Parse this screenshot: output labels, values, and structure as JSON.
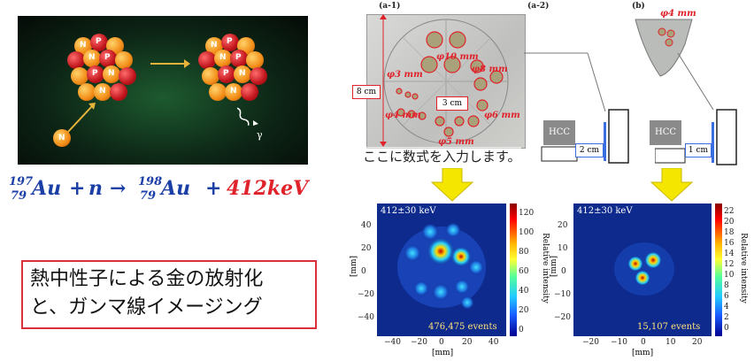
{
  "illustration": {
    "neutron_label": "N",
    "proton_label": "P",
    "gamma_label": "γ"
  },
  "equation": {
    "parts": [
      "197",
      "79",
      "Au",
      "+",
      "n",
      "→",
      "198",
      "79",
      "Au",
      "+",
      "412keV"
    ],
    "energy_color": "#e0232b",
    "main_color": "#1b3fa6"
  },
  "title": {
    "line1": "熱中性子による金の放射化",
    "line2": "と、ガンマ線イメージング"
  },
  "panels": {
    "a1_label": "(a-1)",
    "a2_label": "(a-2)",
    "b_label": "(b)",
    "b_phi": "φ4 mm",
    "height_label": "8 cm",
    "width_label": "3 cm",
    "phi10": "φ10 mm",
    "phi8": "φ8 mm",
    "phi3": "φ3 mm",
    "phi4": "φ4 mm",
    "phi6": "φ6 mm",
    "phi5": "φ5 mm",
    "hcc_a": "HCC",
    "hcc_b": "HCC",
    "dist_a": "2 cm",
    "dist_b": "1 cm",
    "overlay_text": "ここに数式を入力します。"
  },
  "image_left": {
    "energy_label": "412±30 keV",
    "events": "476,475 events",
    "ylabel": "[mm]",
    "xlabel": "[mm]",
    "cbar_label": "Relative intensity",
    "xticks": [
      "−40",
      "−20",
      "0",
      "20",
      "40"
    ],
    "yticks": [
      "40",
      "20",
      "0",
      "−20",
      "−40"
    ],
    "cbar_ticks": [
      "120",
      "100",
      "80",
      "60",
      "40",
      "20",
      "0"
    ]
  },
  "image_right": {
    "energy_label": "412±30 keV",
    "events": "15,107 events",
    "ylabel": "[mm]",
    "xlabel": "[mm]",
    "cbar_label": "Relative intensity",
    "xticks": [
      "−20",
      "−10",
      "0",
      "10",
      "20"
    ],
    "yticks": [
      "20",
      "10",
      "0",
      "−10",
      "−20"
    ],
    "cbar_ticks": [
      "22",
      "20",
      "18",
      "16",
      "14",
      "12",
      "10",
      "8",
      "6",
      "4",
      "2",
      "0"
    ]
  }
}
